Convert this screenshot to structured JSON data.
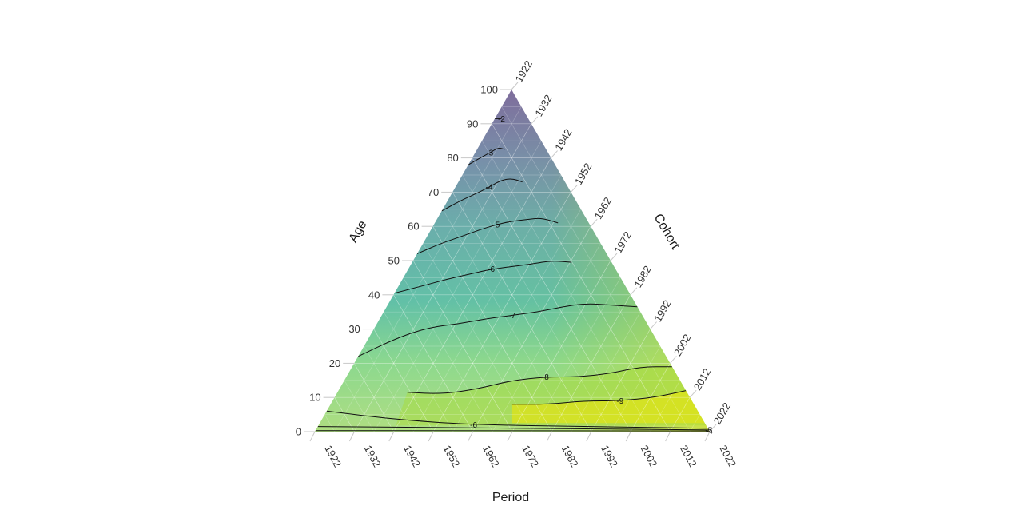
{
  "chart_data": {
    "type": "heatmap",
    "layout": "ternary (Lexis triangle)",
    "axes": {
      "age": {
        "title": "Age",
        "ticks": [
          "0",
          "10",
          "20",
          "30",
          "40",
          "50",
          "60",
          "70",
          "80",
          "90",
          "100"
        ],
        "range": [
          0,
          100
        ]
      },
      "period": {
        "title": "Period",
        "ticks": [
          "1922",
          "1932",
          "1942",
          "1952",
          "1962",
          "1972",
          "1982",
          "1992",
          "2002",
          "2012",
          "2022"
        ],
        "range": [
          1922,
          2022
        ]
      },
      "cohort": {
        "title": "Cohort",
        "ticks": [
          "1922",
          "1932",
          "1942",
          "1952",
          "1962",
          "1972",
          "1982",
          "1992",
          "2002",
          "2012",
          "2022"
        ],
        "range": [
          1922,
          2022
        ]
      }
    },
    "colorscale": "viridis (translucent)",
    "value_range": [
      -10,
      -1
    ],
    "contours": [
      {
        "level": -2,
        "label": "-2",
        "age_at_period": [
          [
            1922,
            91.5
          ],
          [
            1942,
            91.5
          ]
        ]
      },
      {
        "level": -3,
        "label": "-3",
        "age_at_period": [
          [
            1922,
            78
          ],
          [
            1932,
            80
          ],
          [
            1942,
            81.5
          ],
          [
            1952,
            83
          ],
          [
            1962,
            82.5
          ]
        ]
      },
      {
        "level": -4,
        "label": "-4",
        "age_at_period": [
          [
            1922,
            64.5
          ],
          [
            1932,
            67.5
          ],
          [
            1942,
            69.5
          ],
          [
            1952,
            71.5
          ],
          [
            1962,
            73.5
          ],
          [
            1972,
            74
          ],
          [
            1982,
            73
          ]
        ]
      },
      {
        "level": -5,
        "label": "-5",
        "age_at_period": [
          [
            1922,
            52
          ],
          [
            1932,
            55
          ],
          [
            1942,
            57
          ],
          [
            1952,
            59
          ],
          [
            1962,
            60.5
          ],
          [
            1972,
            61.5
          ],
          [
            1982,
            62
          ],
          [
            1992,
            62.5
          ],
          [
            2002,
            61
          ]
        ]
      },
      {
        "level": -6,
        "label": "-6",
        "age_at_period": [
          [
            1922,
            40.5
          ],
          [
            1932,
            42.5
          ],
          [
            1942,
            44.5
          ],
          [
            1952,
            46
          ],
          [
            1962,
            47.5
          ],
          [
            1982,
            49
          ],
          [
            1992,
            50
          ],
          [
            2002,
            49.5
          ]
        ]
      },
      {
        "level": -7,
        "label": "-7",
        "age_at_period": [
          [
            1922,
            22
          ],
          [
            1932,
            27.5
          ],
          [
            1942,
            30.5
          ],
          [
            1952,
            31.5
          ],
          [
            1962,
            33
          ],
          [
            1972,
            34
          ],
          [
            1982,
            35
          ],
          [
            1992,
            36.5
          ],
          [
            2002,
            37.5
          ],
          [
            2012,
            37
          ],
          [
            2022,
            36.5
          ]
        ]
      },
      {
        "level": -8,
        "label": "-8",
        "age_at_period": [
          [
            1942,
            11.5
          ],
          [
            1952,
            11
          ],
          [
            1962,
            12.5
          ],
          [
            1972,
            15
          ],
          [
            1982,
            16
          ],
          [
            1992,
            16
          ],
          [
            2002,
            17
          ],
          [
            2012,
            19
          ],
          [
            2022,
            19
          ]
        ]
      },
      {
        "level": -9,
        "label": "-9",
        "age_at_period": [
          [
            1972,
            8
          ],
          [
            1982,
            8
          ],
          [
            1992,
            9
          ],
          [
            2002,
            9
          ],
          [
            2012,
            10
          ],
          [
            2022,
            12
          ]
        ]
      },
      {
        "level": -6,
        "label": "-6",
        "age_at_period": [
          [
            1922,
            6
          ],
          [
            1942,
            3.5
          ],
          [
            1962,
            2
          ],
          [
            1992,
            1.5
          ],
          [
            2022,
            1
          ]
        ]
      },
      {
        "level": -5,
        "label": "-5",
        "age_at_period": [
          [
            1922,
            1.5
          ],
          [
            2022,
            0.5
          ]
        ]
      },
      {
        "level": -4,
        "label": "-4",
        "age_at_period": [
          [
            1922,
            0.3
          ],
          [
            2022,
            0.2
          ]
        ]
      }
    ],
    "grid": true,
    "title": ""
  }
}
